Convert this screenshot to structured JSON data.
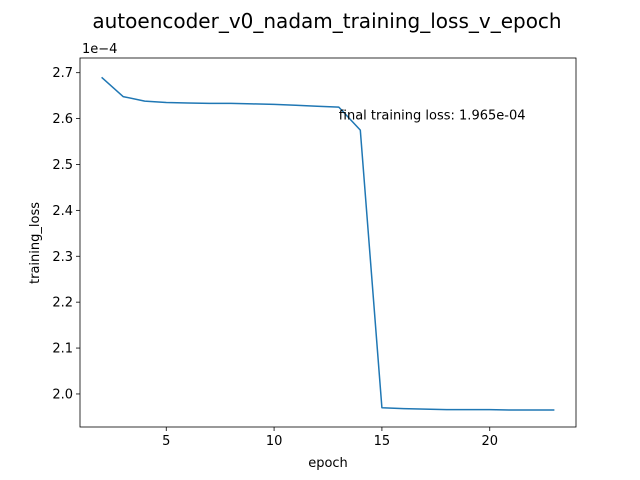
{
  "chart_data": {
    "type": "line",
    "title": "autoencoder_v0_nadam_training_loss_v_epoch",
    "xlabel": "epoch",
    "ylabel": "training_loss",
    "y_scale_label": "1e−4",
    "x": [
      2,
      3,
      4,
      5,
      6,
      7,
      8,
      9,
      10,
      11,
      12,
      13,
      14,
      15,
      16,
      17,
      18,
      19,
      20,
      21,
      22,
      23
    ],
    "series": [
      {
        "values": [
          2.69,
          2.648,
          2.638,
          2.635,
          2.634,
          2.633,
          2.633,
          2.632,
          2.631,
          2.629,
          2.627,
          2.625,
          2.575,
          1.97,
          1.968,
          1.967,
          1.966,
          1.966,
          1.966,
          1.965,
          1.965,
          1.965
        ],
        "color": "#1f77b4"
      }
    ],
    "xlim": [
      1.0,
      24.0
    ],
    "ylim": [
      1.928,
      2.732
    ],
    "xticks": [
      5,
      10,
      15,
      20
    ],
    "xtick_labels": [
      "5",
      "10",
      "15",
      "20"
    ],
    "yticks": [
      2.0,
      2.1,
      2.2,
      2.3,
      2.4,
      2.5,
      2.6,
      2.7
    ],
    "ytick_labels": [
      "2.0",
      "2.1",
      "2.2",
      "2.3",
      "2.4",
      "2.5",
      "2.6",
      "2.7"
    ],
    "annotation": {
      "text": "final training loss: 1.965e-04",
      "x": 13.0,
      "y": 2.608
    },
    "grid": false,
    "legend": "none"
  }
}
